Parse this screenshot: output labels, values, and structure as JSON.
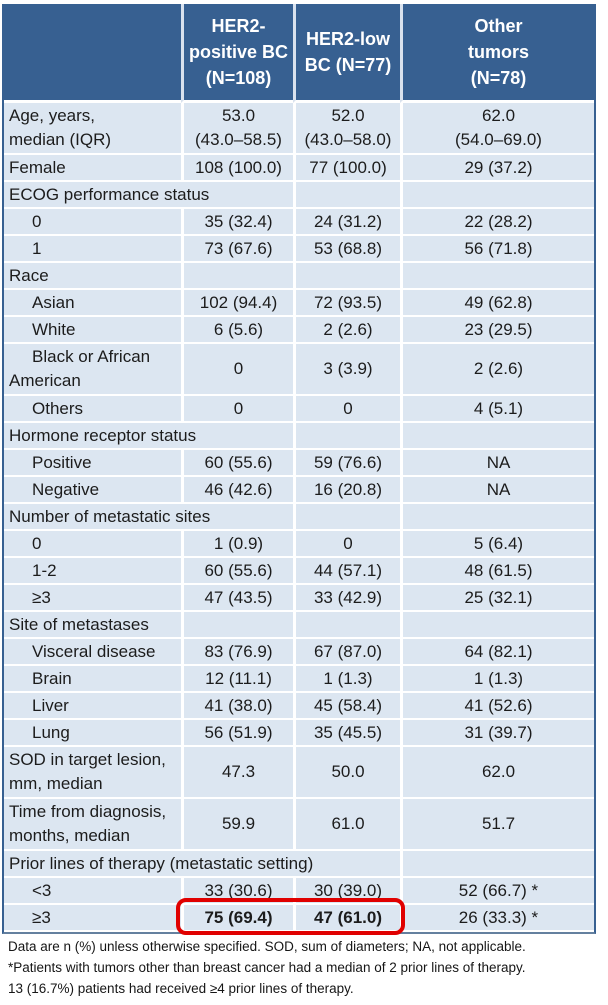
{
  "table": {
    "header": {
      "corner": "",
      "col2": "HER2-\npositive BC\n(N=108)",
      "col3": "HER2-low\nBC (N=77)",
      "col4": "Other\ntumors\n(N=78)"
    },
    "colors": {
      "header_bg": "#376091",
      "row_bg": "#dce6f1",
      "gridline": "#ffffff",
      "side_border": "#376091",
      "text": "#1c1c1c",
      "header_text": "#ffffff"
    },
    "rows": [
      {
        "type": "data",
        "tall": true,
        "label": "Age, years,\nmedian (IQR)",
        "indent": false,
        "values": [
          "53.0\n(43.0–58.5)",
          "52.0\n(43.0–58.0)",
          "62.0\n(54.0–69.0)"
        ]
      },
      {
        "type": "data",
        "label": "Female",
        "indent": false,
        "values": [
          "108 (100.0)",
          "77 (100.0)",
          "29 (37.2)"
        ]
      },
      {
        "type": "section",
        "label": "ECOG performance status",
        "span": 2
      },
      {
        "type": "data",
        "label": "0",
        "indent": true,
        "values": [
          "35 (32.4)",
          "24 (31.2)",
          "22 (28.2)"
        ]
      },
      {
        "type": "data",
        "label": "1",
        "indent": true,
        "values": [
          "73 (67.6)",
          "53 (68.8)",
          "56 (71.8)"
        ]
      },
      {
        "type": "section",
        "label": "Race",
        "span": 1
      },
      {
        "type": "data",
        "label": "Asian",
        "indent": true,
        "values": [
          "102 (94.4)",
          "72 (93.5)",
          "49 (62.8)"
        ]
      },
      {
        "type": "data",
        "label": "White",
        "indent": true,
        "values": [
          "6 (5.6)",
          "2 (2.6)",
          "23 (29.5)"
        ]
      },
      {
        "type": "data",
        "tall": true,
        "label": "Black or African American",
        "indent": true,
        "values": [
          "0",
          "3 (3.9)",
          "2 (2.6)"
        ]
      },
      {
        "type": "data",
        "label": "Others",
        "indent": true,
        "values": [
          "0",
          "0",
          "4 (5.1)"
        ]
      },
      {
        "type": "section",
        "label": "Hormone receptor status",
        "span": 2
      },
      {
        "type": "data",
        "label": "Positive",
        "indent": true,
        "values": [
          "60 (55.6)",
          "59 (76.6)",
          "NA"
        ]
      },
      {
        "type": "data",
        "label": "Negative",
        "indent": true,
        "values": [
          "46 (42.6)",
          "16 (20.8)",
          "NA"
        ]
      },
      {
        "type": "section",
        "label": "Number of metastatic sites",
        "span": 2
      },
      {
        "type": "data",
        "label": "0",
        "indent": true,
        "values": [
          "1 (0.9)",
          "0",
          "5 (6.4)"
        ]
      },
      {
        "type": "data",
        "label": "1-2",
        "indent": true,
        "values": [
          "60 (55.6)",
          "44 (57.1)",
          "48 (61.5)"
        ]
      },
      {
        "type": "data",
        "label": "≥3",
        "indent": true,
        "values": [
          "47 (43.5)",
          "33 (42.9)",
          "25 (32.1)"
        ]
      },
      {
        "type": "section",
        "label": "Site of metastases",
        "span": 1
      },
      {
        "type": "data",
        "label": "Visceral disease",
        "indent": true,
        "values": [
          "83 (76.9)",
          "67 (87.0)",
          "64 (82.1)"
        ]
      },
      {
        "type": "data",
        "label": "Brain",
        "indent": true,
        "values": [
          "12 (11.1)",
          "1 (1.3)",
          "1 (1.3)"
        ]
      },
      {
        "type": "data",
        "label": "Liver",
        "indent": true,
        "values": [
          "41 (38.0)",
          "45 (58.4)",
          "41 (52.6)"
        ]
      },
      {
        "type": "data",
        "label": "Lung",
        "indent": true,
        "values": [
          "56 (51.9)",
          "35 (45.5)",
          "31 (39.7)"
        ]
      },
      {
        "type": "data",
        "tall": true,
        "label": "SOD in target lesion,\nmm, median",
        "indent": false,
        "values": [
          "47.3",
          "50.0",
          "62.0"
        ]
      },
      {
        "type": "data",
        "tall": true,
        "label": "Time from diagnosis,\nmonths, median",
        "indent": false,
        "values": [
          "59.9",
          "61.0",
          "51.7"
        ]
      },
      {
        "type": "section",
        "label": "Prior lines of therapy (metastatic setting)",
        "span": 3
      },
      {
        "type": "data",
        "label": "<3",
        "indent": true,
        "values": [
          "33 (30.6)",
          "30 (39.0)",
          "52 (66.7) *"
        ]
      },
      {
        "type": "data",
        "label": "≥3",
        "indent": true,
        "values": [
          "75 (69.4)",
          "47 (61.0)",
          "26 (33.3) *"
        ],
        "bold": [
          0,
          1
        ]
      }
    ]
  },
  "annotations": {
    "highlight_box_color": "#e00000"
  },
  "footnotes": {
    "lines": [
      "Data are n (%) unless otherwise specified. SOD, sum of diameters; NA, not applicable.",
      "*Patients with tumors other than breast cancer had a median of 2 prior lines of therapy.",
      "13 (16.7%) patients had received ≥4 prior lines of therapy."
    ]
  }
}
